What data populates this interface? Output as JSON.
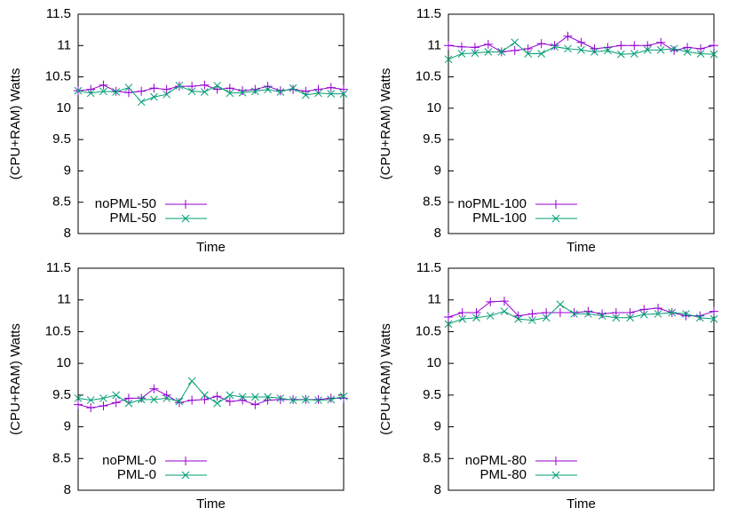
{
  "chart_data": [
    {
      "type": "line",
      "xlabel": "Time",
      "ylabel": "(CPU+RAM) Watts",
      "ylim": [
        8,
        11.5
      ],
      "yticks": [
        8,
        8.5,
        9,
        9.5,
        10,
        10.5,
        11,
        11.5
      ],
      "legend": "lower left",
      "series": [
        {
          "name": "noPML-50",
          "color": "#9400d3",
          "marker": "+",
          "values": [
            10.28,
            10.3,
            10.37,
            10.27,
            10.25,
            10.27,
            10.32,
            10.3,
            10.35,
            10.35,
            10.37,
            10.3,
            10.32,
            10.28,
            10.3,
            10.35,
            10.28,
            10.3,
            10.27,
            10.3,
            10.33,
            10.3
          ]
        },
        {
          "name": "PML-50",
          "color": "#009e73",
          "marker": "x",
          "values": [
            10.28,
            10.24,
            10.27,
            10.26,
            10.33,
            10.1,
            10.18,
            10.22,
            10.36,
            10.27,
            10.26,
            10.36,
            10.24,
            10.25,
            10.27,
            10.3,
            10.26,
            10.32,
            10.21,
            10.24,
            10.23,
            10.23
          ]
        }
      ]
    },
    {
      "type": "line",
      "xlabel": "Time",
      "ylabel": "(CPU+RAM) Watts",
      "ylim": [
        8,
        11.5
      ],
      "yticks": [
        8,
        8.5,
        9,
        9.5,
        10,
        10.5,
        11,
        11.5
      ],
      "legend": "lower left",
      "series": [
        {
          "name": "noPML-100",
          "color": "#9400d3",
          "marker": "+",
          "values": [
            11.0,
            10.98,
            10.97,
            11.02,
            10.9,
            10.92,
            10.95,
            11.03,
            11.0,
            11.15,
            11.05,
            10.95,
            10.97,
            11.0,
            11.0,
            11.0,
            11.05,
            10.92,
            10.97,
            10.95,
            11.0
          ]
        },
        {
          "name": "PML-100",
          "color": "#009e73",
          "marker": "x",
          "values": [
            10.78,
            10.87,
            10.88,
            10.9,
            10.9,
            11.05,
            10.87,
            10.87,
            10.98,
            10.95,
            10.93,
            10.9,
            10.92,
            10.86,
            10.87,
            10.93,
            10.93,
            10.95,
            10.9,
            10.87,
            10.86
          ]
        }
      ]
    },
    {
      "type": "line",
      "xlabel": "Time",
      "ylabel": "(CPU+RAM) Watts",
      "ylim": [
        8,
        11.5
      ],
      "yticks": [
        8,
        8.5,
        9,
        9.5,
        10,
        10.5,
        11,
        11.5
      ],
      "legend": "lower left",
      "series": [
        {
          "name": "noPML-0",
          "color": "#9400d3",
          "marker": "+",
          "values": [
            9.35,
            9.3,
            9.33,
            9.38,
            9.45,
            9.45,
            9.6,
            9.5,
            9.38,
            9.42,
            9.43,
            9.48,
            9.4,
            9.42,
            9.35,
            9.42,
            9.43,
            9.43,
            9.43,
            9.43,
            9.45,
            9.45
          ]
        },
        {
          "name": "PML-0",
          "color": "#009e73",
          "marker": "x",
          "values": [
            9.45,
            9.42,
            9.45,
            9.5,
            9.37,
            9.43,
            9.43,
            9.45,
            9.4,
            9.72,
            9.5,
            9.37,
            9.5,
            9.47,
            9.47,
            9.47,
            9.45,
            9.42,
            9.43,
            9.42,
            9.43,
            9.48
          ]
        }
      ]
    },
    {
      "type": "line",
      "xlabel": "Time",
      "ylabel": "(CPU+RAM) Watts",
      "ylim": [
        8,
        11.5
      ],
      "yticks": [
        8,
        8.5,
        9,
        9.5,
        10,
        10.5,
        11,
        11.5
      ],
      "legend": "lower left",
      "series": [
        {
          "name": "noPML-80",
          "color": "#9400d3",
          "marker": "+",
          "values": [
            10.73,
            10.8,
            10.8,
            10.97,
            10.98,
            10.75,
            10.78,
            10.8,
            10.8,
            10.8,
            10.82,
            10.78,
            10.8,
            10.8,
            10.85,
            10.87,
            10.8,
            10.75,
            10.75,
            10.82
          ]
        },
        {
          "name": "PML-80",
          "color": "#009e73",
          "marker": "x",
          "values": [
            10.62,
            10.7,
            10.72,
            10.75,
            10.82,
            10.7,
            10.68,
            10.72,
            10.93,
            10.78,
            10.78,
            10.75,
            10.72,
            10.72,
            10.77,
            10.78,
            10.8,
            10.78,
            10.72,
            10.7
          ]
        }
      ]
    }
  ]
}
